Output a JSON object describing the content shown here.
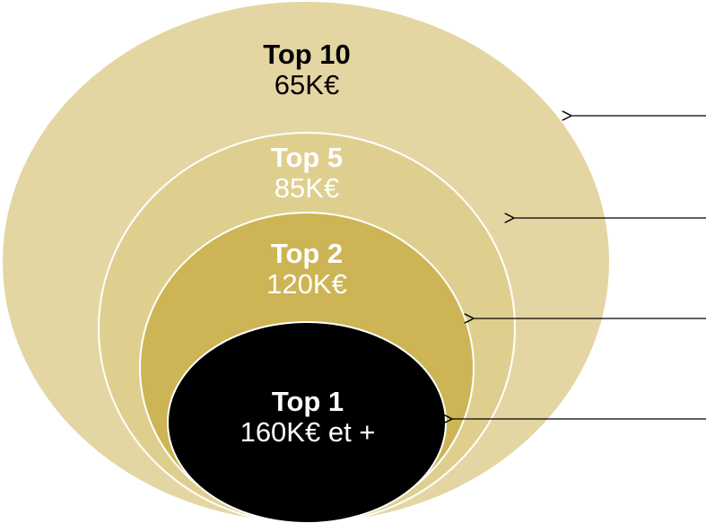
{
  "colors": {
    "background": "#ffffff",
    "outline": "#ffffff",
    "arrow": "#000000"
  },
  "tiers": [
    {
      "title": "Top 10",
      "value": "65K€",
      "fill": "#e4d6a2",
      "text_color": "#000000"
    },
    {
      "title": "Top 5",
      "value": "85K€",
      "fill": "#dfcf8f",
      "text_color": "#ffffff"
    },
    {
      "title": "Top 2",
      "value": "120K€",
      "fill": "#cdb555",
      "text_color": "#ffffff"
    },
    {
      "title": "Top 1",
      "value": "160K€ et +",
      "fill": "#000000",
      "text_color": "#ffffff"
    }
  ]
}
